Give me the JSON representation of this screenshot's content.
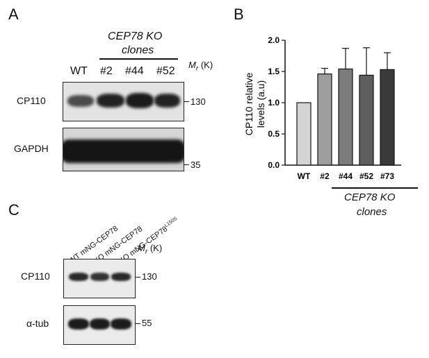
{
  "panelA": {
    "letter": "A",
    "group_label_line1": "CEP78 KO",
    "group_label_line2": "clones",
    "lanes": [
      "WT",
      "#2",
      "#44",
      "#52"
    ],
    "mr_label": "M",
    "mr_sub": "r",
    "mr_unit": "(K)",
    "rows": [
      {
        "label": "CP110",
        "marker": "130"
      },
      {
        "label": "GAPDH",
        "marker": "35"
      }
    ]
  },
  "panelB": {
    "letter": "B",
    "group_label_line1": "CEP78 KO",
    "group_label_line2": "clones"
  },
  "panelC": {
    "letter": "C",
    "lanes": [
      {
        "text": "WT mNG-CEP78",
        "sup": ""
      },
      {
        "text": "KO mNG-CEP78",
        "sup": ""
      },
      {
        "text": "KO mNG-CEP78",
        "sup": "L150S"
      }
    ],
    "mr_label": "M",
    "mr_sub": "r",
    "mr_unit": "(K)",
    "rows": [
      {
        "label": "CP110",
        "marker": "130"
      },
      {
        "label": "α-tub",
        "marker": "55"
      }
    ]
  },
  "chart_data": {
    "type": "bar",
    "title": "",
    "xlabel": "",
    "ylabel": "CP110 relative levels (a.u)",
    "categories": [
      "WT",
      "#2",
      "#44",
      "#52",
      "#73"
    ],
    "values": [
      1.0,
      1.46,
      1.54,
      1.44,
      1.53
    ],
    "error_upper": [
      0,
      0.09,
      0.33,
      0.44,
      0.27
    ],
    "ylim": [
      0,
      2.0
    ],
    "yticks": [
      "0.0",
      "0.5",
      "1.0",
      "1.5",
      "2.0"
    ],
    "bar_colors": [
      "#d4d4d4",
      "#9e9e9e",
      "#7b7b7b",
      "#5e5e5e",
      "#3a3a3a"
    ],
    "grid": false,
    "legend": "none"
  }
}
